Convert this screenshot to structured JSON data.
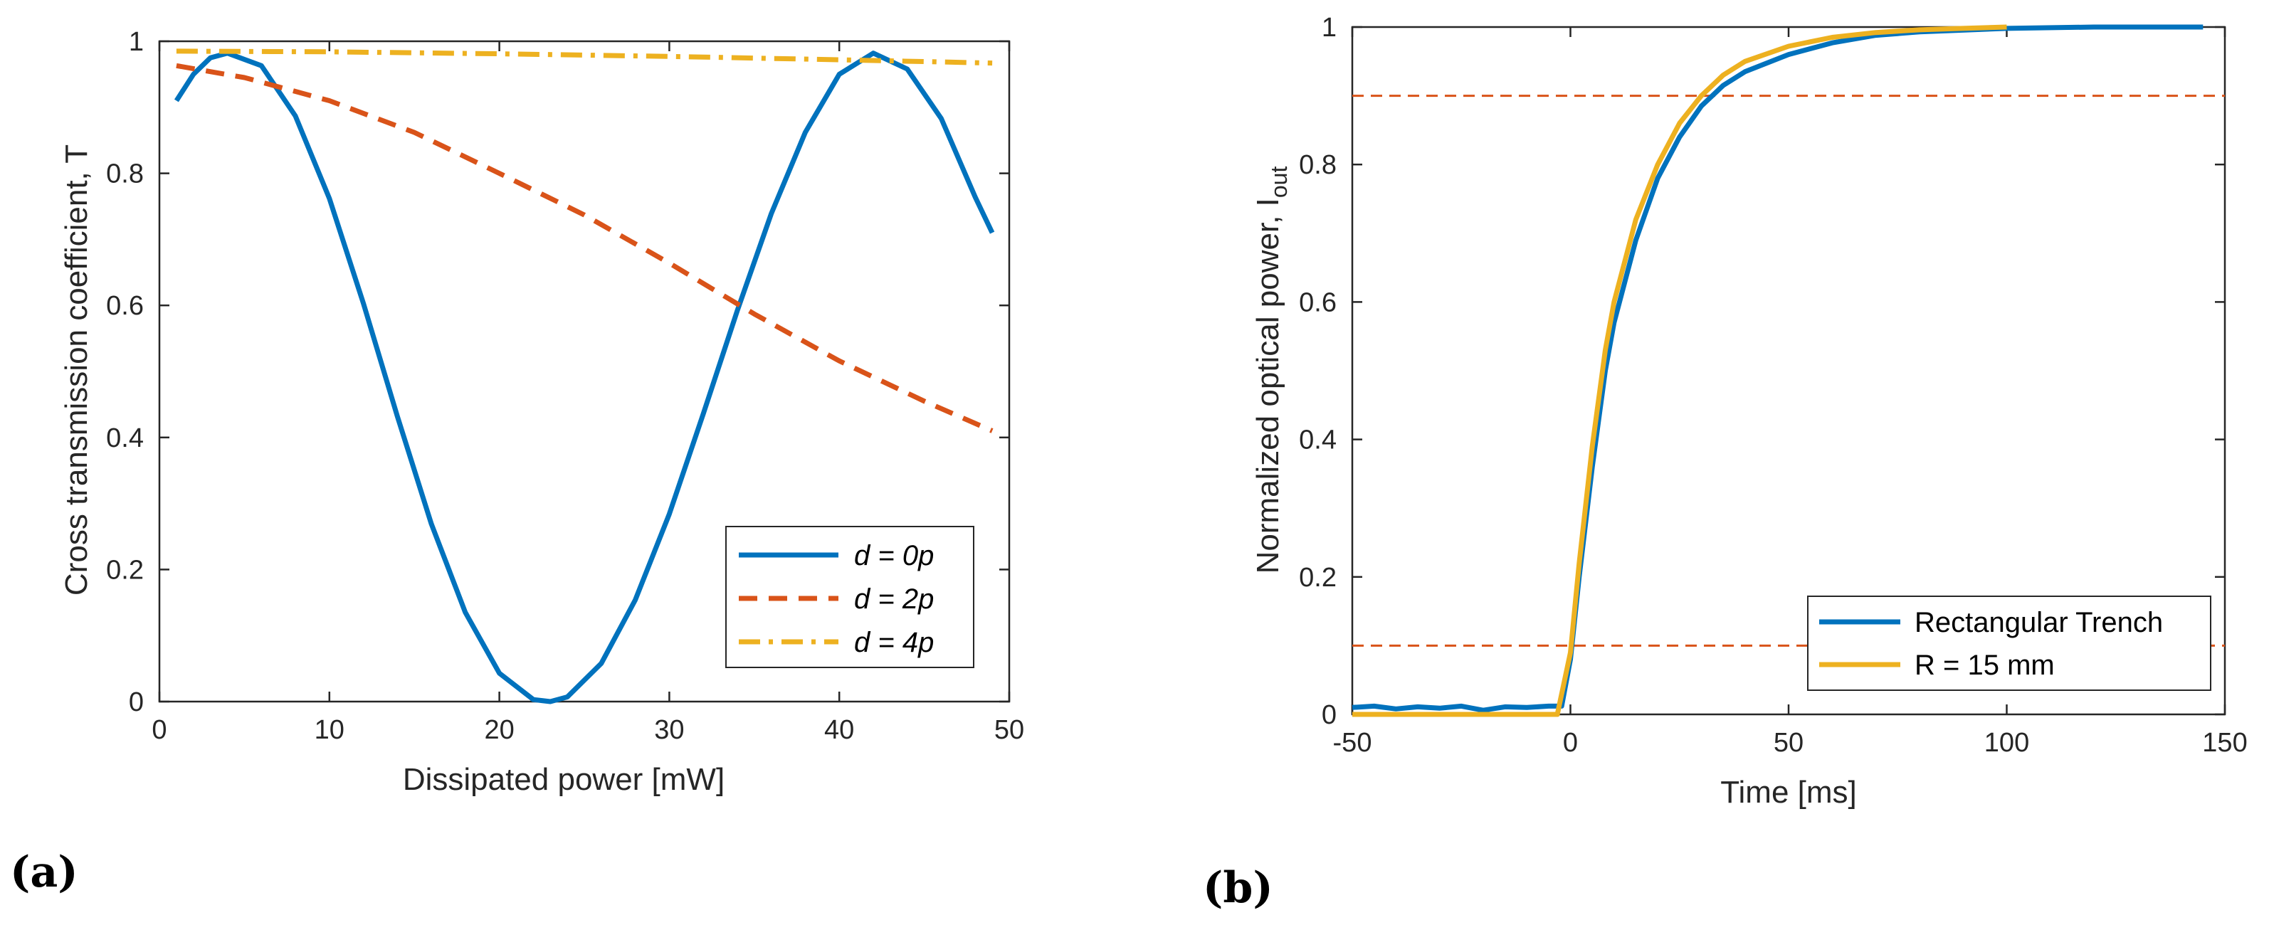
{
  "panels": [
    {
      "label": "(a)"
    },
    {
      "label": "(b)"
    }
  ],
  "chart_data": [
    {
      "type": "line",
      "xlabel": "Dissipated power [mW]",
      "ylabel": "Cross transmission coefficient, T",
      "xlim": [
        0,
        50
      ],
      "ylim": [
        0,
        1
      ],
      "xticks": [
        "0",
        "10",
        "20",
        "30",
        "40",
        "50"
      ],
      "yticks": [
        "0",
        "0.2",
        "0.4",
        "0.6",
        "0.8",
        "1"
      ],
      "grid": false,
      "legend_position": "bottom-right",
      "series": [
        {
          "name": "d = 0p",
          "color": "#0072BD",
          "style": "solid",
          "x": [
            1,
            2,
            3,
            4,
            6,
            8,
            10,
            12,
            14,
            16,
            18,
            20,
            22,
            23,
            24,
            26,
            28,
            30,
            32,
            34,
            36,
            38,
            40,
            42,
            44,
            46,
            48,
            49
          ],
          "y": [
            0.91,
            0.95,
            0.975,
            0.982,
            0.963,
            0.887,
            0.762,
            0.603,
            0.432,
            0.269,
            0.135,
            0.043,
            0.003,
            0.0,
            0.007,
            0.058,
            0.154,
            0.284,
            0.436,
            0.592,
            0.739,
            0.862,
            0.95,
            0.982,
            0.958,
            0.883,
            0.764,
            0.71
          ]
        },
        {
          "name": "d = 2p",
          "color": "#D95319",
          "style": "dashed",
          "x": [
            1,
            5,
            10,
            15,
            20,
            25,
            30,
            35,
            40,
            45,
            49
          ],
          "y": [
            0.963,
            0.945,
            0.91,
            0.862,
            0.8,
            0.737,
            0.664,
            0.587,
            0.516,
            0.455,
            0.41
          ]
        },
        {
          "name": "d = 4p",
          "color": "#EDB120",
          "style": "dashdot",
          "x": [
            1,
            10,
            20,
            30,
            40,
            49
          ],
          "y": [
            0.985,
            0.984,
            0.981,
            0.977,
            0.972,
            0.967
          ]
        }
      ]
    },
    {
      "type": "line",
      "xlabel": "Time [ms]",
      "ylabel": "Normalized optical power, I",
      "ylabel_sub": "out",
      "xlim": [
        -50,
        150
      ],
      "ylim": [
        0,
        1
      ],
      "xticks": [
        "-50",
        "0",
        "50",
        "100",
        "150"
      ],
      "yticks": [
        "0",
        "0.2",
        "0.4",
        "0.6",
        "0.8",
        "1"
      ],
      "grid": false,
      "legend_position": "bottom-right",
      "reference_lines": [
        0.9,
        0.1
      ],
      "reference_color": "#D95319",
      "series": [
        {
          "name": "Rectangular Trench",
          "color": "#0072BD",
          "style": "solid",
          "x": [
            -50,
            -45,
            -40,
            -35,
            -30,
            -25,
            -20,
            -15,
            -10,
            -5,
            -2,
            0,
            2,
            5,
            8,
            10,
            15,
            20,
            25,
            30,
            35,
            40,
            50,
            60,
            70,
            80,
            100,
            120,
            145
          ],
          "y": [
            0.01,
            0.012,
            0.008,
            0.011,
            0.009,
            0.012,
            0.006,
            0.011,
            0.01,
            0.012,
            0.012,
            0.08,
            0.2,
            0.36,
            0.5,
            0.57,
            0.69,
            0.78,
            0.84,
            0.885,
            0.915,
            0.935,
            0.96,
            0.977,
            0.988,
            0.993,
            0.998,
            1.0,
            1.0
          ]
        },
        {
          "name": "R = 15 mm",
          "color": "#EDB120",
          "style": "solid",
          "x": [
            -50,
            -40,
            -30,
            -20,
            -10,
            -3,
            0,
            2,
            5,
            8,
            10,
            15,
            20,
            25,
            30,
            35,
            40,
            50,
            60,
            70,
            80,
            90,
            100
          ],
          "y": [
            0.0,
            0.0,
            0.0,
            0.0,
            0.0,
            0.0,
            0.09,
            0.22,
            0.39,
            0.53,
            0.6,
            0.72,
            0.8,
            0.86,
            0.9,
            0.93,
            0.95,
            0.972,
            0.985,
            0.992,
            0.996,
            0.998,
            1.0
          ]
        }
      ]
    }
  ]
}
